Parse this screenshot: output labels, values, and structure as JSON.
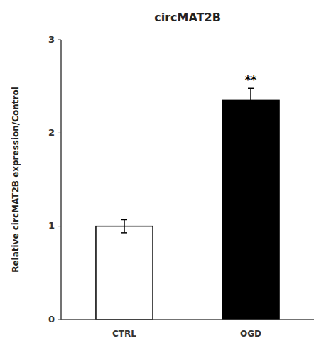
{
  "chart_data": {
    "type": "bar",
    "title": "circMAT2B",
    "ylabel": "Relative circMAT2B expression/Control",
    "categories": [
      "CTRL",
      "OGD"
    ],
    "values": [
      1.0,
      2.35
    ],
    "errors": [
      0.07,
      0.13
    ],
    "colors": [
      "#ffffff",
      "#000000"
    ],
    "significance": [
      null,
      "**"
    ],
    "ylim": [
      0,
      3
    ],
    "yticks": [
      0,
      1,
      2,
      3
    ],
    "grid": false
  }
}
